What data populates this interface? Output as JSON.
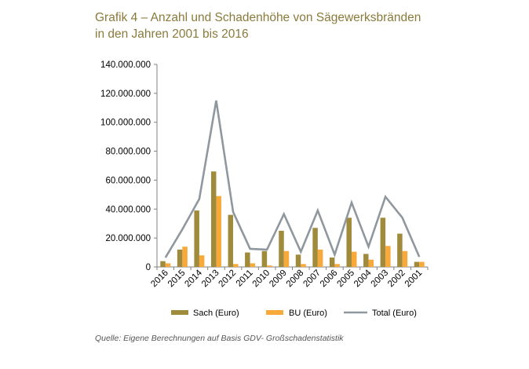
{
  "title": {
    "line1": "Grafik 4 – Anzahl und Schadenhöhe von Sägewerksbränden",
    "line2": "in den Jahren 2001 bis 2016"
  },
  "source": "Quelle: Eigene Berechnungen auf Basis GDV- Großschadenstatistik",
  "colors": {
    "sach": "#a08a3c",
    "bu": "#f7a93a",
    "total": "#8f989e",
    "title": "#8a7a3c",
    "axis": "#808080"
  },
  "chart_data": {
    "type": "bar",
    "title": "Grafik 4 – Anzahl und Schadenhöhe von Sägewerksbränden in den Jahren 2001 bis 2016",
    "xlabel": "",
    "ylabel": "",
    "ylim": [
      0,
      140000000
    ],
    "yticks": [
      0,
      20000000,
      40000000,
      60000000,
      80000000,
      100000000,
      120000000,
      140000000
    ],
    "ytick_labels": [
      "0",
      "20.000.000",
      "40.000.000",
      "60.000.000",
      "80.000.000",
      "100.000.000",
      "120.000.000",
      "140.000.000"
    ],
    "grid": false,
    "legend_position": "bottom",
    "categories": [
      "2016",
      "2015",
      "2014",
      "2013",
      "2012",
      "2011",
      "2010",
      "2009",
      "2008",
      "2007",
      "2006",
      "2005",
      "2004",
      "2003",
      "2002",
      "2001"
    ],
    "series": [
      {
        "name": "Sach (Euro)",
        "kind": "bar",
        "color": "#a08a3c",
        "values": [
          4000000,
          12000000,
          39000000,
          66000000,
          36000000,
          10000000,
          11000000,
          25000000,
          8500000,
          27000000,
          6500000,
          34000000,
          9000000,
          34000000,
          23000000,
          3500000
        ]
      },
      {
        "name": "BU (Euro)",
        "kind": "bar",
        "color": "#f7a93a",
        "values": [
          2500000,
          14000000,
          8000000,
          49000000,
          2000000,
          2500000,
          1000000,
          11000000,
          2000000,
          12000000,
          2000000,
          10500000,
          5000000,
          14500000,
          11000000,
          3500000
        ]
      },
      {
        "name": "Total (Euro)",
        "kind": "line",
        "color": "#8f989e",
        "values": [
          6500000,
          26000000,
          47000000,
          115000000,
          38000000,
          12500000,
          12000000,
          36500000,
          10500000,
          39000000,
          8500000,
          44500000,
          14000000,
          48500000,
          34000000,
          7000000
        ]
      }
    ]
  }
}
